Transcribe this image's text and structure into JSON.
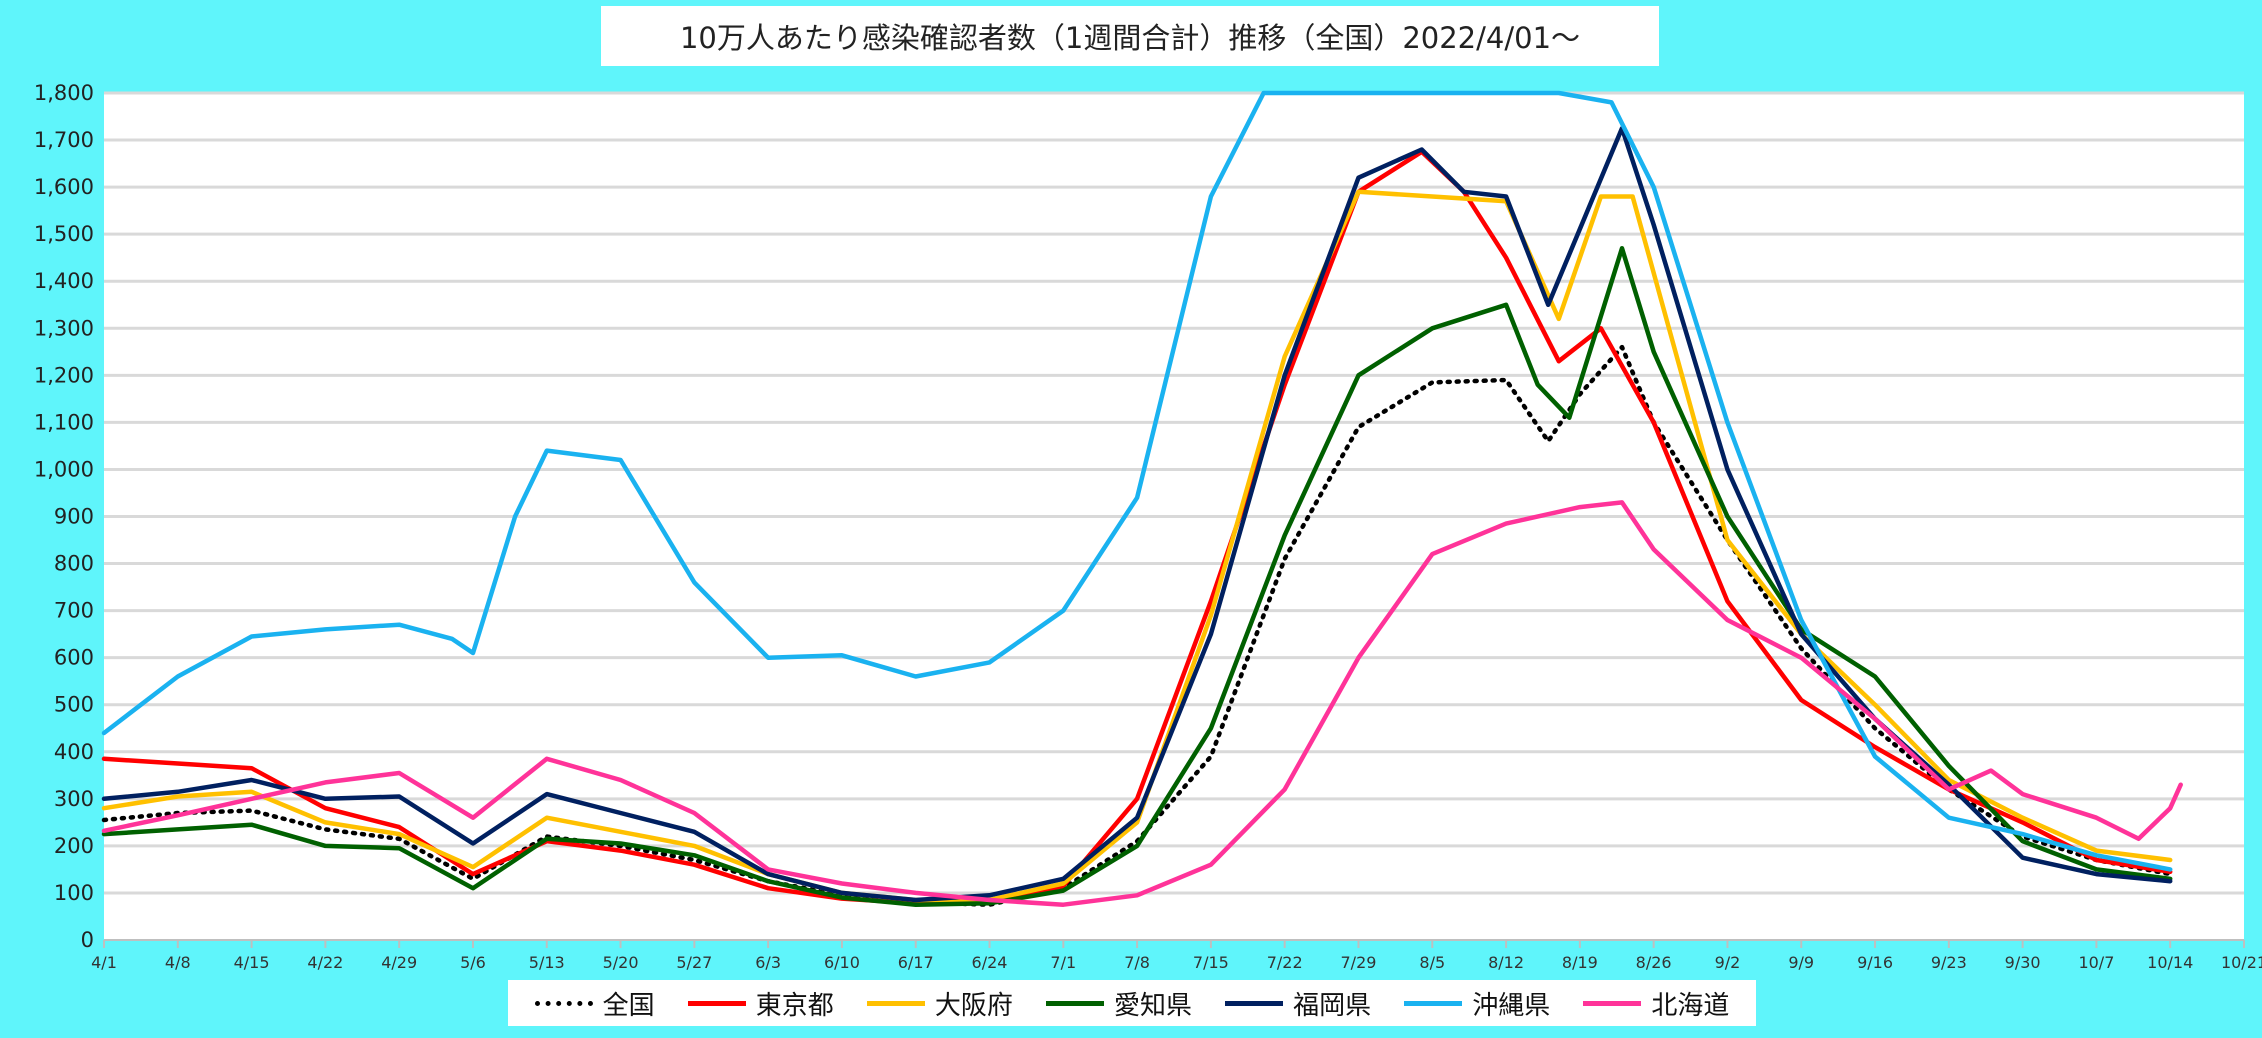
{
  "chart_data": {
    "type": "line",
    "title": "10万人あたり感染確認者数（1週間合計）推移（全国）2022/4/01～",
    "xlabel": "",
    "ylabel": "",
    "ylim": [
      0,
      1800
    ],
    "yticks": [
      0,
      100,
      200,
      300,
      400,
      500,
      600,
      700,
      800,
      900,
      1000,
      1100,
      1200,
      1300,
      1400,
      1500,
      1600,
      1700,
      1800
    ],
    "ytick_labels": [
      "0",
      "100",
      "200",
      "300",
      "400",
      "500",
      "600",
      "700",
      "800",
      "900",
      "1,000",
      "1,100",
      "1,200",
      "1,300",
      "1,400",
      "1,500",
      "1,600",
      "1,700",
      "1,800"
    ],
    "x_start": "2022-04-01",
    "x_end": "2022-10-21",
    "xtick_labels": [
      "4/1",
      "4/8",
      "4/15",
      "4/22",
      "4/29",
      "5/6",
      "5/13",
      "5/20",
      "5/27",
      "6/3",
      "6/10",
      "6/17",
      "6/24",
      "7/1",
      "7/8",
      "7/15",
      "7/22",
      "7/29",
      "8/5",
      "8/12",
      "8/19",
      "8/26",
      "9/2",
      "9/9",
      "9/16",
      "9/23",
      "9/30",
      "10/7",
      "10/14",
      "10/21"
    ],
    "grid": true,
    "legend_position": "bottom",
    "series": [
      {
        "name": "全国",
        "color": "#000000",
        "style": "dotted",
        "points": [
          [
            "4/1",
            255
          ],
          [
            "4/8",
            270
          ],
          [
            "4/15",
            275
          ],
          [
            "4/22",
            235
          ],
          [
            "4/29",
            215
          ],
          [
            "5/6",
            130
          ],
          [
            "5/13",
            220
          ],
          [
            "5/20",
            200
          ],
          [
            "5/27",
            170
          ],
          [
            "6/3",
            125
          ],
          [
            "6/10",
            95
          ],
          [
            "6/17",
            80
          ],
          [
            "6/24",
            75
          ],
          [
            "7/1",
            110
          ],
          [
            "7/8",
            210
          ],
          [
            "7/15",
            390
          ],
          [
            "7/22",
            810
          ],
          [
            "7/29",
            1090
          ],
          [
            "8/5",
            1185
          ],
          [
            "8/12",
            1190
          ],
          [
            "8/16",
            1060
          ],
          [
            "8/19",
            1160
          ],
          [
            "8/23",
            1260
          ],
          [
            "8/26",
            1100
          ],
          [
            "9/2",
            850
          ],
          [
            "9/9",
            620
          ],
          [
            "9/16",
            450
          ],
          [
            "9/23",
            320
          ],
          [
            "9/30",
            220
          ],
          [
            "10/7",
            170
          ],
          [
            "10/14",
            140
          ]
        ]
      },
      {
        "name": "東京都",
        "color": "#ff0000",
        "style": "solid",
        "points": [
          [
            "4/1",
            385
          ],
          [
            "4/8",
            375
          ],
          [
            "4/15",
            365
          ],
          [
            "4/22",
            280
          ],
          [
            "4/29",
            240
          ],
          [
            "5/6",
            140
          ],
          [
            "5/13",
            210
          ],
          [
            "5/20",
            190
          ],
          [
            "5/27",
            160
          ],
          [
            "6/3",
            110
          ],
          [
            "6/10",
            88
          ],
          [
            "6/17",
            78
          ],
          [
            "6/24",
            80
          ],
          [
            "7/1",
            115
          ],
          [
            "7/8",
            300
          ],
          [
            "7/15",
            720
          ],
          [
            "7/22",
            1180
          ],
          [
            "7/29",
            1590
          ],
          [
            "8/4",
            1675
          ],
          [
            "8/8",
            1590
          ],
          [
            "8/12",
            1450
          ],
          [
            "8/17",
            1230
          ],
          [
            "8/21",
            1300
          ],
          [
            "8/26",
            1100
          ],
          [
            "9/2",
            720
          ],
          [
            "9/9",
            510
          ],
          [
            "9/16",
            410
          ],
          [
            "9/23",
            320
          ],
          [
            "9/30",
            250
          ],
          [
            "10/7",
            170
          ],
          [
            "10/14",
            145
          ]
        ]
      },
      {
        "name": "大阪府",
        "color": "#ffc000",
        "style": "solid",
        "points": [
          [
            "4/1",
            280
          ],
          [
            "4/8",
            305
          ],
          [
            "4/15",
            315
          ],
          [
            "4/22",
            250
          ],
          [
            "4/29",
            225
          ],
          [
            "5/6",
            155
          ],
          [
            "5/13",
            260
          ],
          [
            "5/20",
            230
          ],
          [
            "5/27",
            200
          ],
          [
            "6/3",
            140
          ],
          [
            "6/10",
            100
          ],
          [
            "6/17",
            85
          ],
          [
            "6/24",
            85
          ],
          [
            "7/1",
            120
          ],
          [
            "7/8",
            250
          ],
          [
            "7/15",
            690
          ],
          [
            "7/22",
            1240
          ],
          [
            "7/29",
            1590
          ],
          [
            "8/5",
            1580
          ],
          [
            "8/12",
            1570
          ],
          [
            "8/17",
            1320
          ],
          [
            "8/21",
            1580
          ],
          [
            "8/24",
            1580
          ],
          [
            "9/2",
            850
          ],
          [
            "9/9",
            650
          ],
          [
            "9/16",
            500
          ],
          [
            "9/23",
            340
          ],
          [
            "9/30",
            260
          ],
          [
            "10/7",
            190
          ],
          [
            "10/14",
            170
          ]
        ]
      },
      {
        "name": "愛知県",
        "color": "#006000",
        "style": "solid",
        "points": [
          [
            "4/1",
            225
          ],
          [
            "4/8",
            235
          ],
          [
            "4/15",
            245
          ],
          [
            "4/22",
            200
          ],
          [
            "4/29",
            195
          ],
          [
            "5/6",
            110
          ],
          [
            "5/13",
            215
          ],
          [
            "5/20",
            205
          ],
          [
            "5/27",
            180
          ],
          [
            "6/3",
            125
          ],
          [
            "6/10",
            90
          ],
          [
            "6/17",
            75
          ],
          [
            "6/24",
            78
          ],
          [
            "7/1",
            105
          ],
          [
            "7/8",
            200
          ],
          [
            "7/15",
            450
          ],
          [
            "7/22",
            860
          ],
          [
            "7/29",
            1200
          ],
          [
            "8/5",
            1300
          ],
          [
            "8/12",
            1350
          ],
          [
            "8/15",
            1180
          ],
          [
            "8/18",
            1110
          ],
          [
            "8/23",
            1470
          ],
          [
            "8/26",
            1250
          ],
          [
            "9/2",
            900
          ],
          [
            "9/9",
            660
          ],
          [
            "9/16",
            560
          ],
          [
            "9/23",
            370
          ],
          [
            "9/30",
            210
          ],
          [
            "10/7",
            150
          ],
          [
            "10/14",
            130
          ]
        ]
      },
      {
        "name": "福岡県",
        "color": "#002060",
        "style": "solid",
        "points": [
          [
            "4/1",
            300
          ],
          [
            "4/8",
            315
          ],
          [
            "4/15",
            340
          ],
          [
            "4/22",
            300
          ],
          [
            "4/29",
            305
          ],
          [
            "5/6",
            205
          ],
          [
            "5/13",
            310
          ],
          [
            "5/20",
            270
          ],
          [
            "5/27",
            230
          ],
          [
            "6/3",
            140
          ],
          [
            "6/10",
            100
          ],
          [
            "6/17",
            85
          ],
          [
            "6/24",
            95
          ],
          [
            "7/1",
            130
          ],
          [
            "7/8",
            260
          ],
          [
            "7/15",
            650
          ],
          [
            "7/22",
            1200
          ],
          [
            "7/29",
            1620
          ],
          [
            "8/4",
            1680
          ],
          [
            "8/8",
            1590
          ],
          [
            "8/12",
            1580
          ],
          [
            "8/16",
            1350
          ],
          [
            "8/23",
            1725
          ],
          [
            "8/26",
            1520
          ],
          [
            "9/2",
            1000
          ],
          [
            "9/9",
            650
          ],
          [
            "9/16",
            470
          ],
          [
            "9/23",
            330
          ],
          [
            "9/30",
            175
          ],
          [
            "10/7",
            140
          ],
          [
            "10/14",
            125
          ]
        ]
      },
      {
        "name": "沖縄県",
        "color": "#1ab2f0",
        "style": "solid",
        "points": [
          [
            "4/1",
            440
          ],
          [
            "4/8",
            560
          ],
          [
            "4/15",
            645
          ],
          [
            "4/22",
            660
          ],
          [
            "4/29",
            670
          ],
          [
            "5/4",
            640
          ],
          [
            "5/6",
            610
          ],
          [
            "5/10",
            900
          ],
          [
            "5/13",
            1040
          ],
          [
            "5/20",
            1020
          ],
          [
            "5/27",
            760
          ],
          [
            "6/3",
            600
          ],
          [
            "6/10",
            605
          ],
          [
            "6/17",
            560
          ],
          [
            "6/24",
            590
          ],
          [
            "7/1",
            700
          ],
          [
            "7/8",
            940
          ],
          [
            "7/15",
            1580
          ],
          [
            "7/20",
            1800
          ],
          [
            "8/17",
            1800
          ],
          [
            "8/22",
            1780
          ],
          [
            "8/26",
            1600
          ],
          [
            "9/2",
            1100
          ],
          [
            "9/9",
            680
          ],
          [
            "9/16",
            390
          ],
          [
            "9/23",
            260
          ],
          [
            "9/30",
            225
          ],
          [
            "10/7",
            180
          ],
          [
            "10/14",
            150
          ]
        ]
      },
      {
        "name": "北海道",
        "color": "#ff3399",
        "style": "solid",
        "points": [
          [
            "4/1",
            232
          ],
          [
            "4/8",
            265
          ],
          [
            "4/15",
            300
          ],
          [
            "4/22",
            335
          ],
          [
            "4/29",
            355
          ],
          [
            "5/6",
            260
          ],
          [
            "5/13",
            385
          ],
          [
            "5/20",
            340
          ],
          [
            "5/27",
            270
          ],
          [
            "6/3",
            150
          ],
          [
            "6/10",
            120
          ],
          [
            "6/17",
            100
          ],
          [
            "6/24",
            85
          ],
          [
            "7/1",
            75
          ],
          [
            "7/8",
            95
          ],
          [
            "7/15",
            160
          ],
          [
            "7/22",
            320
          ],
          [
            "7/29",
            600
          ],
          [
            "8/5",
            820
          ],
          [
            "8/12",
            885
          ],
          [
            "8/19",
            920
          ],
          [
            "8/23",
            930
          ],
          [
            "8/26",
            830
          ],
          [
            "9/2",
            680
          ],
          [
            "9/9",
            600
          ],
          [
            "9/16",
            470
          ],
          [
            "9/23",
            320
          ],
          [
            "9/27",
            360
          ],
          [
            "9/30",
            310
          ],
          [
            "10/7",
            260
          ],
          [
            "10/11",
            215
          ],
          [
            "10/14",
            280
          ],
          [
            "10/15",
            330
          ]
        ]
      }
    ]
  }
}
